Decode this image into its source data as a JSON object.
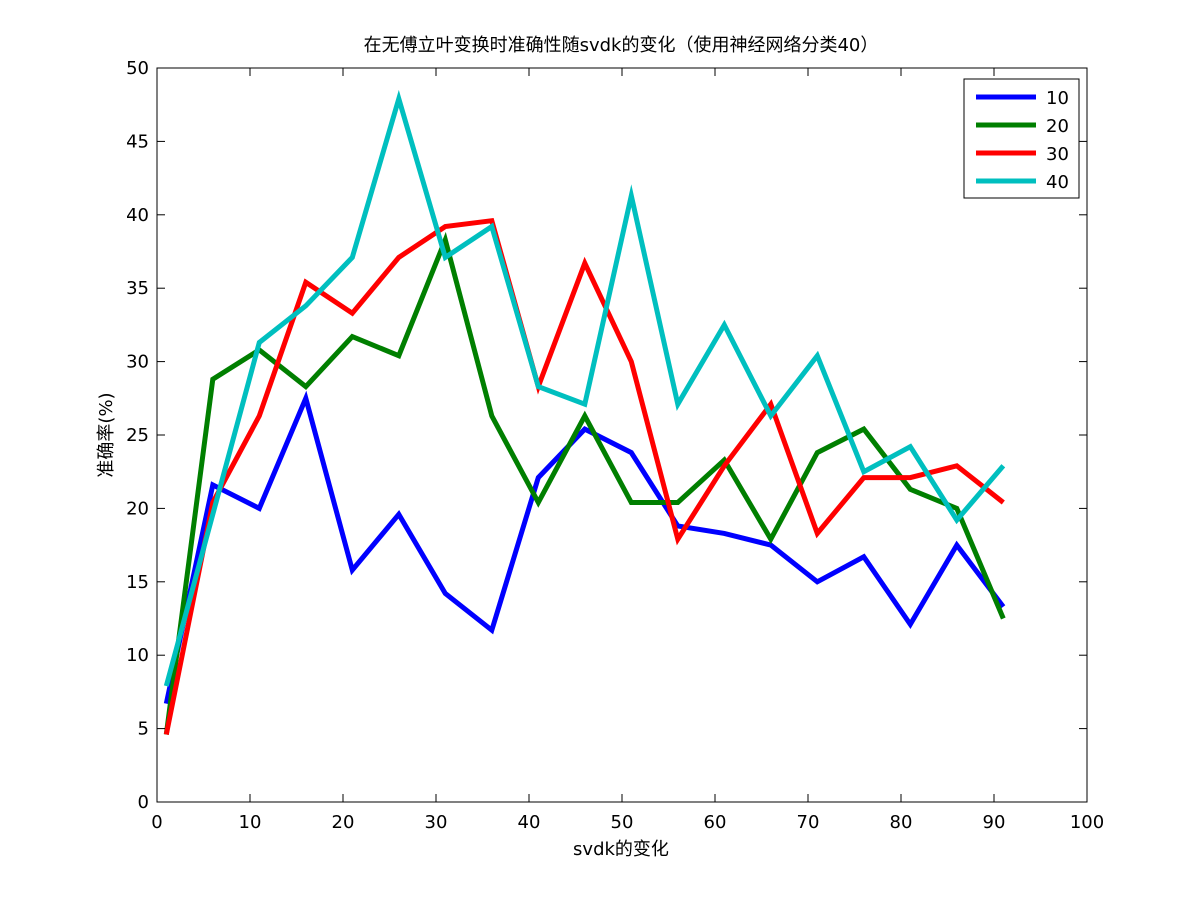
{
  "chart_data": {
    "type": "line",
    "title": "在无傅立叶变换时准确性随svdk的变化（使用神经网络分类40）",
    "xlabel": "svdk的变化",
    "ylabel": "准确率(%)",
    "xlim": [
      0,
      100
    ],
    "ylim": [
      0,
      50
    ],
    "xticks": [
      0,
      10,
      20,
      30,
      40,
      50,
      60,
      70,
      80,
      90,
      100
    ],
    "yticks": [
      0,
      5,
      10,
      15,
      20,
      25,
      30,
      35,
      40,
      45,
      50
    ],
    "grid": false,
    "legend_position": "top-right",
    "x": [
      1,
      6,
      11,
      16,
      21,
      26,
      31,
      36,
      41,
      46,
      51,
      56,
      61,
      66,
      71,
      76,
      81,
      86,
      91
    ],
    "series": [
      {
        "name": "10",
        "color": "#0000ff",
        "values": [
          6.7,
          21.6,
          20.0,
          27.5,
          15.8,
          19.6,
          14.2,
          11.7,
          22.1,
          25.4,
          23.8,
          18.8,
          18.3,
          17.5,
          15.0,
          16.7,
          12.1,
          17.5,
          13.3
        ]
      },
      {
        "name": "20",
        "color": "#007f00",
        "values": [
          4.6,
          28.8,
          30.8,
          28.3,
          31.7,
          30.4,
          38.3,
          26.3,
          20.4,
          26.3,
          20.4,
          20.4,
          23.3,
          17.9,
          23.8,
          25.4,
          21.3,
          20.0,
          12.5
        ]
      },
      {
        "name": "30",
        "color": "#ff0000",
        "values": [
          4.6,
          20.4,
          26.3,
          35.4,
          33.3,
          37.1,
          39.2,
          39.6,
          28.3,
          36.7,
          30.0,
          17.9,
          22.9,
          27.1,
          18.3,
          22.1,
          22.1,
          22.9,
          20.4
        ]
      },
      {
        "name": "40",
        "color": "#00bfbf",
        "values": [
          7.9,
          19.6,
          31.3,
          33.8,
          37.1,
          47.9,
          37.1,
          39.2,
          28.3,
          27.1,
          41.3,
          27.1,
          32.5,
          26.3,
          30.4,
          22.5,
          24.2,
          19.2,
          22.9
        ]
      }
    ]
  }
}
